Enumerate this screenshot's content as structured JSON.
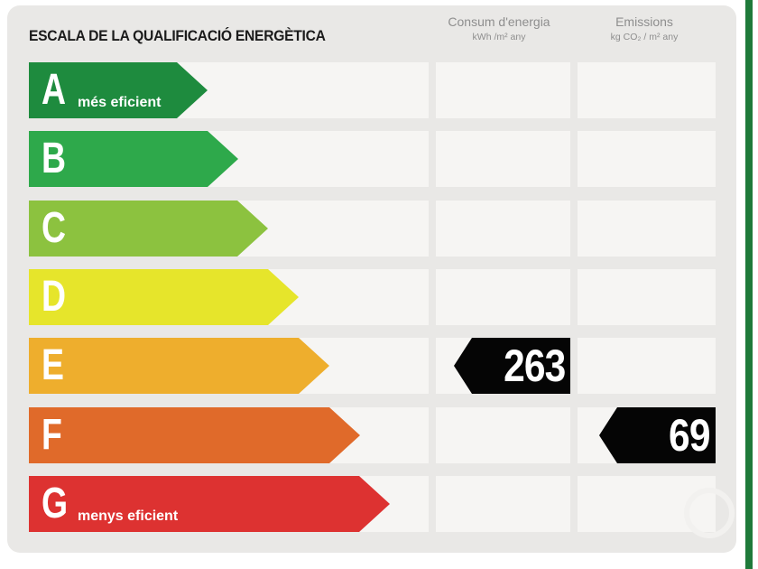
{
  "title": "ESCALA DE LA QUALIFICACIÓ ENERGÈTICA",
  "columns": {
    "consum": {
      "label": "Consum d'energia",
      "unit": "kWh /m² any"
    },
    "emissions": {
      "label": "Emissions",
      "unit": "kg CO₂ / m² any"
    }
  },
  "ratings": [
    {
      "letter": "A",
      "sublabel": "més eficient",
      "color": "#1e8b3e"
    },
    {
      "letter": "B",
      "sublabel": "",
      "color": "#2ea94b"
    },
    {
      "letter": "C",
      "sublabel": "",
      "color": "#8cc23f"
    },
    {
      "letter": "D",
      "sublabel": "",
      "color": "#e6e52b"
    },
    {
      "letter": "E",
      "sublabel": "",
      "color": "#eeae2d"
    },
    {
      "letter": "F",
      "sublabel": "",
      "color": "#e06a2a"
    },
    {
      "letter": "G",
      "sublabel": "menys eficient",
      "color": "#dd3231"
    }
  ],
  "indicators": {
    "consum": {
      "value": "263",
      "rating": "E"
    },
    "emissions": {
      "value": "69",
      "rating": "F"
    }
  }
}
